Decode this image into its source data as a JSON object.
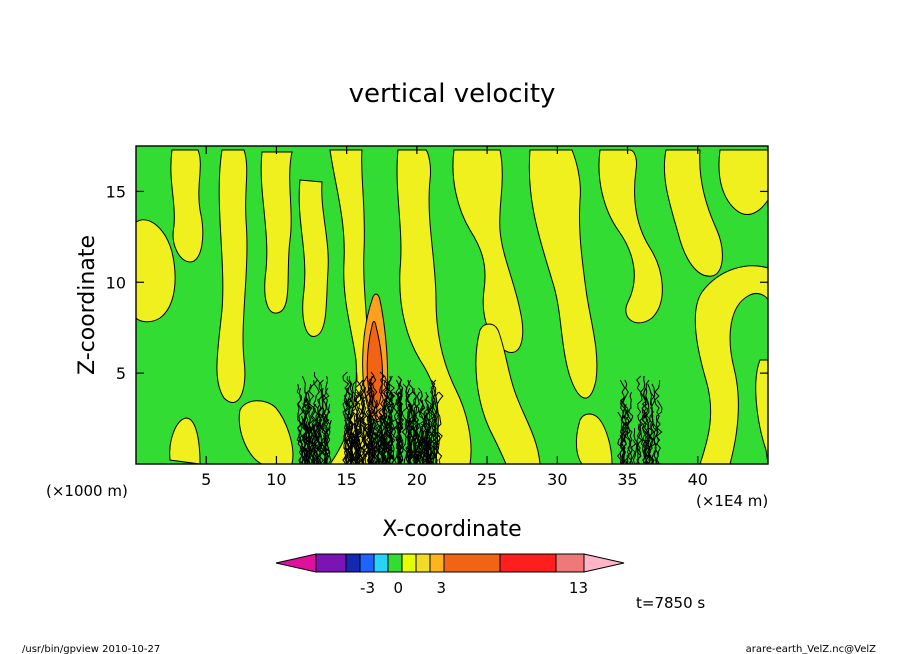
{
  "chart_data": {
    "type": "contour",
    "title": "vertical velocity",
    "xlabel": "X-coordinate",
    "ylabel": "Z-coordinate",
    "x_unit_left": "(×1000 m)",
    "x_unit_right": "(×1E4 m)",
    "xlim": [
      0,
      45
    ],
    "ylim": [
      0,
      17.5
    ],
    "x_ticks": [
      5,
      10,
      15,
      20,
      25,
      30,
      35,
      40
    ],
    "y_ticks": [
      5,
      10,
      15
    ],
    "time_label": "t=7850 s",
    "colorbar": {
      "colors": [
        "#e0109f",
        "#7a14b4",
        "#1428b4",
        "#1e64ff",
        "#28d2ff",
        "#32dc32",
        "#e6ff00",
        "#f0dc28",
        "#ffb41e",
        "#f06414",
        "#ff1e1e",
        "#f07878",
        "#ffb4c8"
      ],
      "labels": [
        "-3",
        "0",
        "3",
        "13"
      ]
    },
    "fields": {
      "background": "#32dc32",
      "positive_fill": "#f0f01e",
      "strong_fill": "#ffa020",
      "core_fill": "#f06414"
    }
  },
  "footer": {
    "left": "/usr/bin/gpview   2010-10-27",
    "right": "arare-earth_VelZ.nc@VelZ"
  }
}
